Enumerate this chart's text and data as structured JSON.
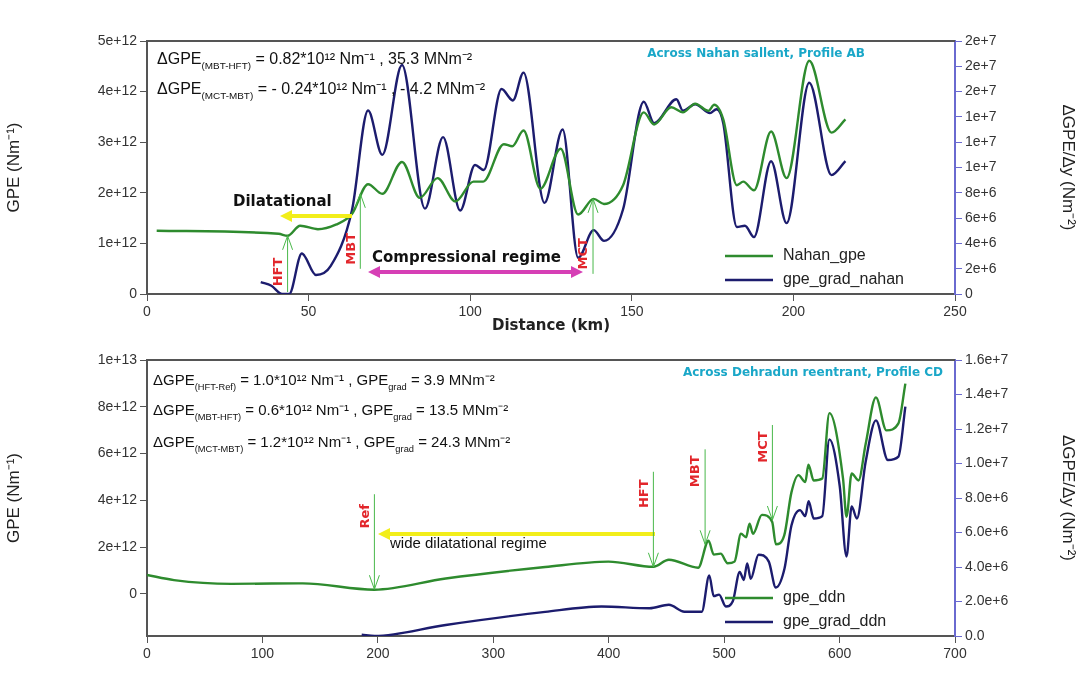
{
  "chart_data": [
    {
      "type": "line",
      "title": "Across Nahan sallent, Profile AB",
      "xlabel": "Distance (km)",
      "ylabel": "GPE (Nm⁻¹)",
      "y2label": "ΔGPE/Δy (Nm⁻²)",
      "xlim": [
        0,
        250
      ],
      "xticks": [
        0,
        50,
        100,
        150,
        200,
        250
      ],
      "ylim": [
        0,
        5000000000000.0
      ],
      "yticks": [
        0,
        {
          "value": 1000000000000.0,
          "label": "1e+12"
        },
        {
          "value": 2000000000000.0,
          "label": "2e+12"
        },
        {
          "value": 3000000000000.0,
          "label": "3e+12"
        },
        {
          "value": 4000000000000.0,
          "label": "4e+12"
        },
        {
          "value": 5000000000000.0,
          "label": "5e+12"
        }
      ],
      "y2lim": [
        0,
        20000000.0
      ],
      "y2ticks": [
        0,
        {
          "value": 2000000.0,
          "label": "2e+6"
        },
        {
          "value": 4000000.0,
          "label": "4e+6"
        },
        {
          "value": 6000000.0,
          "label": "6e+6"
        },
        {
          "value": 8000000.0,
          "label": "8e+6"
        },
        {
          "value": 10000000.0,
          "label": "1e+7"
        },
        {
          "value": 12000000.0,
          "label": "1e+7"
        },
        {
          "value": 14000000.0,
          "label": "1e+7"
        },
        {
          "value": 16000000.0,
          "label": "2e+7"
        },
        {
          "value": 18000000.0,
          "label": "2e+7"
        },
        {
          "value": 20000000.0,
          "label": "2e+7"
        }
      ],
      "legend": "bottom right",
      "series": [
        {
          "name": "Nahan_gpe",
          "color": "#2e8b2e",
          "x": [
            3,
            40.7,
            43.5,
            47.4,
            52.9,
            58.4,
            63.4,
            68.4,
            72.8,
            78.9,
            84.4,
            89.9,
            95.4,
            101,
            104,
            110.4,
            113,
            116.5,
            121.7,
            128,
            133.4,
            138.2,
            141.4,
            147.3,
            153.7,
            156.9,
            162.2,
            165.8,
            169.6,
            173.7,
            175.5,
            178.3,
            182.5,
            184.5,
            187.8,
            193.1,
            197.9,
            204.9,
            211.8,
            216.1
          ],
          "values": [
            1250000000000.0,
            1190000000000.0,
            1150000000000.0,
            1350000000000.0,
            1280000000000.0,
            1370000000000.0,
            1580000000000.0,
            2170000000000.0,
            1980000000000.0,
            2610000000000.0,
            1900000000000.0,
            2290000000000.0,
            1830000000000.0,
            2220000000000.0,
            2220000000000.0,
            2960000000000.0,
            2920000000000.0,
            3230000000000.0,
            2080000000000.0,
            2870000000000.0,
            1570000000000.0,
            1880000000000.0,
            1780000000000.0,
            2150000000000.0,
            3590000000000.0,
            3350000000000.0,
            3690000000000.0,
            3590000000000.0,
            3760000000000.0,
            3620000000000.0,
            3740000000000.0,
            3450000000000.0,
            2150000000000.0,
            2220000000000.0,
            2050000000000.0,
            3210000000000.0,
            2290000000000.0,
            4610000000000.0,
            3190000000000.0,
            3450000000000.0
          ]
        },
        {
          "name": "gpe_grad_nahan",
          "color": "#1c1c6e",
          "axis": "y2",
          "x": [
            35.2,
            38.5,
            41.8,
            44,
            47.9,
            52.3,
            56.8,
            63.4,
            68.4,
            72.8,
            78.9,
            86,
            91.6,
            96.9,
            101.5,
            104.2,
            109.7,
            113.2,
            116.5,
            123,
            128.6,
            133.4,
            138.2,
            141.4,
            147.3,
            153.7,
            156.9,
            163.8,
            165.8,
            169.6,
            174.2,
            176.2,
            178.3,
            182.5,
            185,
            187.8,
            193.1,
            197.9,
            204.9,
            211.8,
            216.1
          ],
          "values": [
            940000.0,
            650000.0,
            0,
            0,
            3200000.0,
            1500000.0,
            2200000.0,
            6600000.0,
            14500000.0,
            11000000.0,
            18100000.0,
            6750000.0,
            12400000.0,
            6600000.0,
            10200000.0,
            9800000.0,
            16200000.0,
            15300000.0,
            17500000.0,
            7200000.0,
            13000000.0,
            2860000.0,
            5050000.0,
            4200000.0,
            6700000.0,
            15200000.0,
            13500000.0,
            15400000.0,
            14500000.0,
            15000000.0,
            14300000.0,
            14600000.0,
            13500000.0,
            5300000.0,
            5400000.0,
            4500000.0,
            10500000.0,
            5600000.0,
            16700000.0,
            9400000.0,
            10500000.0
          ]
        }
      ],
      "annotations": [
        "ΔGPE$_{(MBT-HFT)}$ = 0.82*10¹² Nm⁻¹ , 35.3 MNm⁻²",
        "ΔGPE$_{(MCT-MBT)}$ = - 0.24*10¹² Nm⁻¹ , - 4.2 MNm⁻²",
        "Dilatational",
        "Compressional regime",
        {
          "text": "HFT",
          "x": 43.5,
          "y": 1150000000000.0
        },
        {
          "text": "MBT",
          "x": 66,
          "y": 1980000000000.0
        },
        {
          "text": "MCT",
          "x": 138,
          "y": 1880000000000.0
        }
      ]
    },
    {
      "type": "line",
      "title": "Across Dehradun reentrant, Profile CD",
      "ylabel": "GPE (Nm⁻¹)",
      "y2label": "ΔGPE/Δy (Nm⁻²)",
      "xlim": [
        0,
        700
      ],
      "xticks": [
        0,
        100,
        200,
        300,
        400,
        500,
        600,
        700
      ],
      "ylim": [
        -1800000000000.0,
        10000000000000.0
      ],
      "yticks": [
        0,
        {
          "value": 2000000000000.0,
          "label": "2e+12"
        },
        {
          "value": 4000000000000.0,
          "label": "4e+12"
        },
        {
          "value": 6000000000000.0,
          "label": "6e+12"
        },
        {
          "value": 8000000000000.0,
          "label": "8e+12"
        },
        {
          "value": 10000000000000.0,
          "label": "1e+13"
        }
      ],
      "y2lim": [
        0,
        16000000.0
      ],
      "y2ticks": [
        {
          "value": 0,
          "label": "0.0"
        },
        {
          "value": 2000000.0,
          "label": "2.0e+6"
        },
        {
          "value": 4000000.0,
          "label": "4.0e+6"
        },
        {
          "value": 6000000.0,
          "label": "6.0e+6"
        },
        {
          "value": 8000000.0,
          "label": "8.0e+6"
        },
        {
          "value": 10000000.0,
          "label": "1.0e+7"
        },
        {
          "value": 12000000.0,
          "label": "1.2e+7"
        },
        {
          "value": 14000000.0,
          "label": "1.4e+7"
        },
        {
          "value": 16000000.0,
          "label": "1.6e+7"
        }
      ],
      "legend": "bottom right",
      "series": [
        {
          "name": "gpe_ddn",
          "color": "#2e8b2e",
          "x": [
            0,
            23.4,
            73,
            135,
            196.9,
            258.8,
            345,
            399.8,
            438.7,
            452.1,
            477.5,
            486.5,
            491,
            497,
            503,
            509,
            514.6,
            519,
            522,
            525,
            532.7,
            541.6,
            544.8,
            552,
            558.3,
            564.4,
            570.3,
            573,
            577.6,
            585,
            591.2,
            603,
            606,
            610.5,
            616.4,
            622.6,
            631.5,
            640.6,
            651,
            657
          ],
          "values": [
            810000000000.0,
            590000000000.0,
            430000000000.0,
            450000000000.0,
            180000000000.0,
            660000000000.0,
            1150000000000.0,
            1380000000000.0,
            1160000000000.0,
            1460000000000.0,
            1120000000000.0,
            2270000000000.0,
            1680000000000.0,
            1720000000000.0,
            1310000000000.0,
            1380000000000.0,
            2570000000000.0,
            2420000000000.0,
            3000000000000.0,
            2570000000000.0,
            3380000000000.0,
            3080000000000.0,
            2120000000000.0,
            2490000000000.0,
            4340000000000.0,
            5080000000000.0,
            4780000000000.0,
            5520000000000.0,
            4850000000000.0,
            4930000000000.0,
            7730000000000.0,
            4930000000000.0,
            3300000000000.0,
            5150000000000.0,
            4850000000000.0,
            6410000000000.0,
            8400000000000.0,
            6990000000000.0,
            7290000000000.0,
            8990000000000.0
          ]
        },
        {
          "name": "gpe_grad_ddn",
          "color": "#1c1c6e",
          "axis": "y2",
          "x": [
            186,
            197.2,
            258.8,
            345,
            393.8,
            435.4,
            452.1,
            465.6,
            480.6,
            487.1,
            491,
            495.6,
            501.5,
            507.5,
            513.5,
            517,
            520,
            523,
            529.8,
            538.7,
            544.8,
            552.3,
            558.3,
            565.7,
            570.3,
            573.2,
            577.6,
            585,
            591.2,
            600.1,
            606,
            610.5,
            615,
            622.6,
            631.5,
            641.9,
            651,
            657
          ],
          "values": [
            80000.0,
            0,
            640000.0,
            1400000.0,
            1710000.0,
            1610000.0,
            1810000.0,
            1410000.0,
            1410000.0,
            3510000.0,
            2310000.0,
            2400000.0,
            1710000.0,
            2010000.0,
            3710000.0,
            3250000.0,
            4210000.0,
            3310000.0,
            4710000.0,
            4310000.0,
            2810000.0,
            3910000.0,
            6410000.0,
            7300000.0,
            6950000.0,
            7810000.0,
            6810000.0,
            6950000.0,
            11400000.0,
            8710000.0,
            4610000.0,
            7510000.0,
            6810000.0,
            10100000.0,
            12500000.0,
            10200000.0,
            10400000.0,
            13300000.0
          ]
        }
      ],
      "annotations": [
        "ΔGPE$_{(HFT-Ref)}$ = 1.0*10¹² Nm⁻¹ , GPE$_{grad}$ = 3.9 MNm⁻²",
        "ΔGPE$_{(MBT-HFT)}$ = 0.6*10¹² Nm⁻¹ , GPE$_{grad}$ = 13.5 MNm⁻²",
        "ΔGPE$_{(MCT-MBT)}$ = 1.2*10¹² Nm⁻¹ , GPE$_{grad}$ = 24.3 MNm⁻²",
        "wide dilatational regime",
        {
          "text": "Ref",
          "x": 197,
          "y": 200000000000.0
        },
        {
          "text": "HFT",
          "x": 438.7,
          "y": 1160000000000.0
        },
        {
          "text": "MBT",
          "x": 483.5,
          "y": 2120000000000.0
        },
        {
          "text": "MCT",
          "x": 541.8,
          "y": 3160000000000.0
        }
      ]
    }
  ]
}
